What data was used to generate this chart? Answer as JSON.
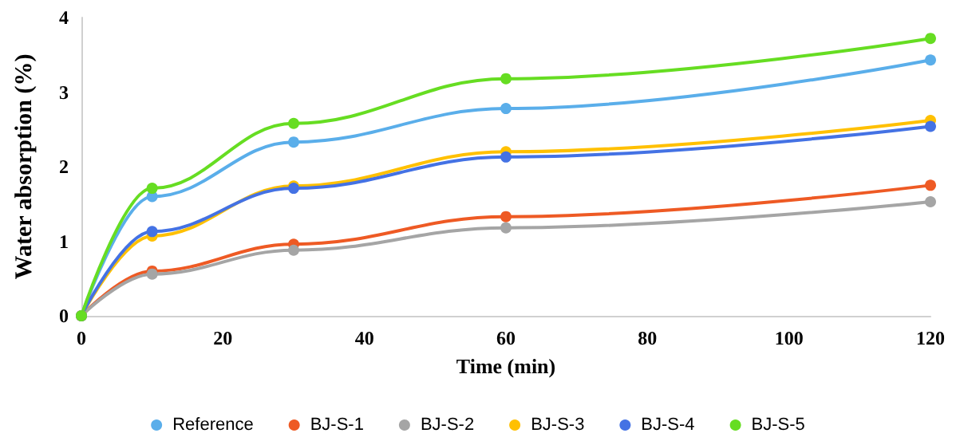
{
  "chart_data": {
    "type": "line",
    "xlabel": "Time (min)",
    "ylabel": "Water absorption (%)",
    "x": [
      0,
      10,
      30,
      60,
      120
    ],
    "series": [
      {
        "name": "Reference",
        "color": "#5aaeea",
        "values": [
          0,
          1.6,
          2.33,
          2.78,
          3.43
        ]
      },
      {
        "name": "BJ-S-1",
        "color": "#ee5a24",
        "values": [
          0,
          0.6,
          0.96,
          1.33,
          1.75
        ]
      },
      {
        "name": "BJ-S-2",
        "color": "#a5a5a5",
        "values": [
          0,
          0.56,
          0.88,
          1.18,
          1.53
        ]
      },
      {
        "name": "BJ-S-3",
        "color": "#ffc000",
        "values": [
          0,
          1.07,
          1.74,
          2.2,
          2.62
        ]
      },
      {
        "name": "BJ-S-4",
        "color": "#4472e4",
        "values": [
          0,
          1.13,
          1.71,
          2.13,
          2.54
        ]
      },
      {
        "name": "BJ-S-5",
        "color": "#66dd22",
        "values": [
          0,
          1.71,
          2.58,
          3.18,
          3.72
        ]
      }
    ],
    "xlim": [
      0,
      120
    ],
    "xticks": [
      0,
      20,
      40,
      60,
      80,
      100,
      120
    ],
    "ylim": [
      0,
      4
    ],
    "yticks": [
      0,
      1,
      2,
      3,
      4
    ],
    "grid": false,
    "legend": "bottom",
    "marker": "circle",
    "line_style": "solid"
  }
}
